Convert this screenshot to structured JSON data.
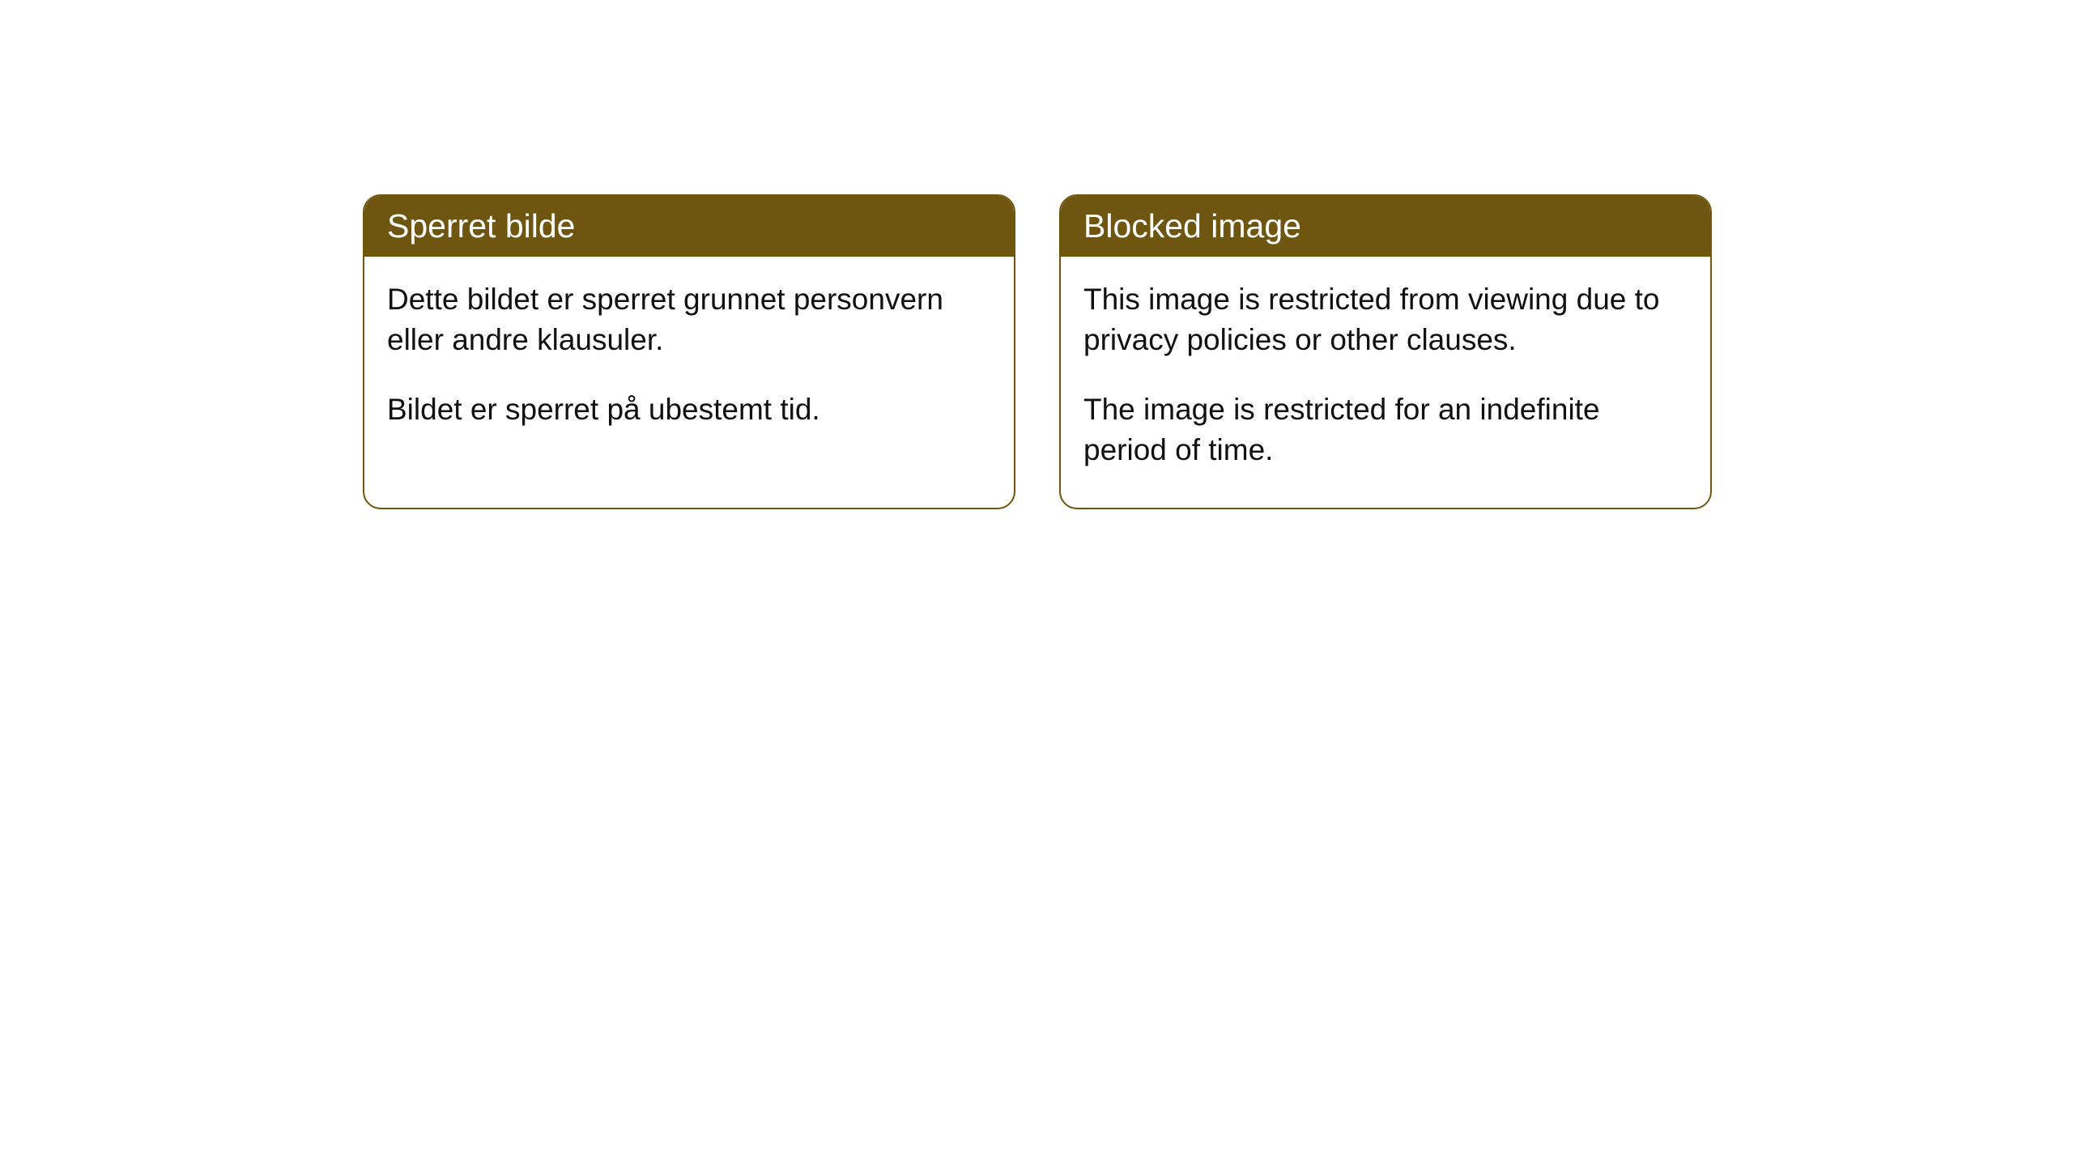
{
  "cards": {
    "norwegian": {
      "title": "Sperret bilde",
      "paragraph1": "Dette bildet er sperret grunnet personvern eller andre klausuler.",
      "paragraph2": "Bildet er sperret på ubestemt tid."
    },
    "english": {
      "title": "Blocked image",
      "paragraph1": "This image is restricted from viewing due to privacy policies or other clauses.",
      "paragraph2": "The image is restricted for an indefinite period of time."
    }
  },
  "styling": {
    "header_background": "#6f5610",
    "header_text_color": "#ffffff",
    "border_color": "#6f5610",
    "body_background": "#ffffff",
    "body_text_color": "#111111",
    "border_radius": 22,
    "title_fontsize": 41,
    "body_fontsize": 37
  }
}
